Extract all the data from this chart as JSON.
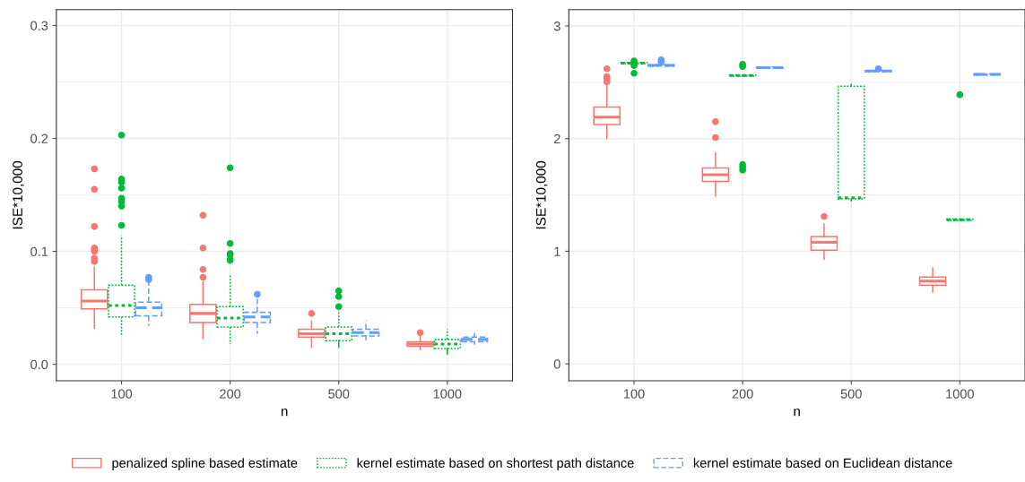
{
  "chart_data": [
    {
      "type": "box",
      "xlabel": "n",
      "ylabel": "ISE*10,000",
      "categories": [
        "100",
        "200",
        "500",
        "1000"
      ],
      "ylim": [
        -0.0146,
        0.314
      ],
      "yticks": [
        {
          "value": 0,
          "label": "0.0"
        },
        {
          "value": 0.1,
          "label": "0.1"
        },
        {
          "value": 0.2,
          "label": "0.2"
        },
        {
          "value": 0.3,
          "label": "0.3"
        }
      ],
      "grid": true,
      "legend": "bottom",
      "series": [
        {
          "name": "penalized spline based estimate",
          "color": "#f8766d",
          "line_style": "solid",
          "boxes": [
            {
              "low": 0.032,
              "q1": 0.049,
              "median": 0.056,
              "q3": 0.066,
              "high": 0.086,
              "outliers": [
                0.173,
                0.155,
                0.122,
                0.103,
                0.102,
                0.1,
                0.094,
                0.091
              ]
            },
            {
              "low": 0.023,
              "q1": 0.037,
              "median": 0.045,
              "q3": 0.053,
              "high": 0.073,
              "outliers": [
                0.132,
                0.103,
                0.084,
                0.077
              ]
            },
            {
              "low": 0.015,
              "q1": 0.024,
              "median": 0.027,
              "q3": 0.031,
              "high": 0.038,
              "outliers": [
                0.045
              ]
            },
            {
              "low": 0.013,
              "q1": 0.016,
              "median": 0.018,
              "q3": 0.02,
              "high": 0.025,
              "outliers": [
                0.028
              ]
            }
          ]
        },
        {
          "name": "kernel estimate based on shortest path distance",
          "color": "#00ba38",
          "line_style": "dotted",
          "boxes": [
            {
              "low": 0.026,
              "q1": 0.042,
              "median": 0.052,
              "q3": 0.07,
              "high": 0.114,
              "outliers": [
                0.203,
                0.164,
                0.161,
                0.156,
                0.147,
                0.144,
                0.14,
                0.123
              ]
            },
            {
              "low": 0.018,
              "q1": 0.033,
              "median": 0.041,
              "q3": 0.051,
              "high": 0.08,
              "outliers": [
                0.174,
                0.107,
                0.098,
                0.097,
                0.093,
                0.092
              ]
            },
            {
              "low": 0.015,
              "q1": 0.021,
              "median": 0.027,
              "q3": 0.033,
              "high": 0.047,
              "outliers": [
                0.065,
                0.06,
                0.051
              ]
            },
            {
              "low": 0.009,
              "q1": 0.014,
              "median": 0.018,
              "q3": 0.022,
              "high": 0.031
            }
          ]
        },
        {
          "name": "kernel estimate based on Euclidean distance",
          "color": "#619cff",
          "line_style": "dashed",
          "boxes": [
            {
              "low": 0.034,
              "q1": 0.043,
              "median": 0.05,
              "q3": 0.055,
              "high": 0.073,
              "outliers": [
                0.077,
                0.075
              ]
            },
            {
              "low": 0.027,
              "q1": 0.037,
              "median": 0.042,
              "q3": 0.046,
              "high": 0.058,
              "outliers": [
                0.062
              ]
            },
            {
              "low": 0.022,
              "q1": 0.025,
              "median": 0.028,
              "q3": 0.031,
              "high": 0.039
            },
            {
              "low": 0.018,
              "q1": 0.02,
              "median": 0.022,
              "q3": 0.024,
              "high": 0.027
            }
          ]
        }
      ]
    },
    {
      "type": "box",
      "xlabel": "n",
      "ylabel": "ISE*10,000",
      "categories": [
        "100",
        "200",
        "500",
        "1000"
      ],
      "ylim": [
        -0.15,
        3.145
      ],
      "yticks": [
        0,
        1,
        2,
        3
      ],
      "grid": true,
      "series": [
        {
          "color": "#f8766d",
          "line_style": "solid",
          "boxes": [
            {
              "low": 2.0,
              "q1": 2.125,
              "median": 2.19,
              "q3": 2.28,
              "high": 2.48,
              "outliers": [
                2.62,
                2.55,
                2.53,
                2.505
              ]
            },
            {
              "low": 1.49,
              "q1": 1.62,
              "median": 1.68,
              "q3": 1.74,
              "high": 1.87,
              "outliers": [
                2.15,
                2.01
              ]
            },
            {
              "low": 0.93,
              "q1": 1.01,
              "median": 1.08,
              "q3": 1.13,
              "high": 1.24,
              "outliers": [
                1.31
              ]
            },
            {
              "low": 0.64,
              "q1": 0.7,
              "median": 0.735,
              "q3": 0.77,
              "high": 0.85
            }
          ]
        },
        {
          "color": "#00ba38",
          "line_style": "dotted",
          "boxes": [
            {
              "low": 2.665,
              "q1": 2.665,
              "median": 2.67,
              "q3": 2.675,
              "high": 2.675,
              "outliers": [
                2.69,
                2.65,
                2.58
              ]
            },
            {
              "low": 2.555,
              "q1": 2.555,
              "median": 2.56,
              "q3": 2.565,
              "high": 2.565,
              "outliers": [
                2.66,
                2.64,
                1.77,
                1.745,
                1.72
              ]
            },
            {
              "low": 1.45,
              "q1": 1.465,
              "median": 1.475,
              "q3": 2.465,
              "high": 2.48
            },
            {
              "low": 1.275,
              "q1": 1.275,
              "median": 1.28,
              "q3": 1.285,
              "high": 1.285,
              "outliers": [
                2.39
              ]
            }
          ]
        },
        {
          "color": "#619cff",
          "line_style": "dashed",
          "boxes": [
            {
              "low": 2.645,
              "q1": 2.645,
              "median": 2.65,
              "q3": 2.655,
              "high": 2.655,
              "outliers": [
                2.7,
                2.68
              ]
            },
            {
              "low": 2.625,
              "q1": 2.625,
              "median": 2.63,
              "q3": 2.635,
              "high": 2.635
            },
            {
              "low": 2.595,
              "q1": 2.595,
              "median": 2.6,
              "q3": 2.605,
              "high": 2.605,
              "outliers": [
                2.62
              ]
            },
            {
              "low": 2.565,
              "q1": 2.565,
              "median": 2.57,
              "q3": 2.575,
              "high": 2.575
            }
          ]
        }
      ]
    }
  ]
}
